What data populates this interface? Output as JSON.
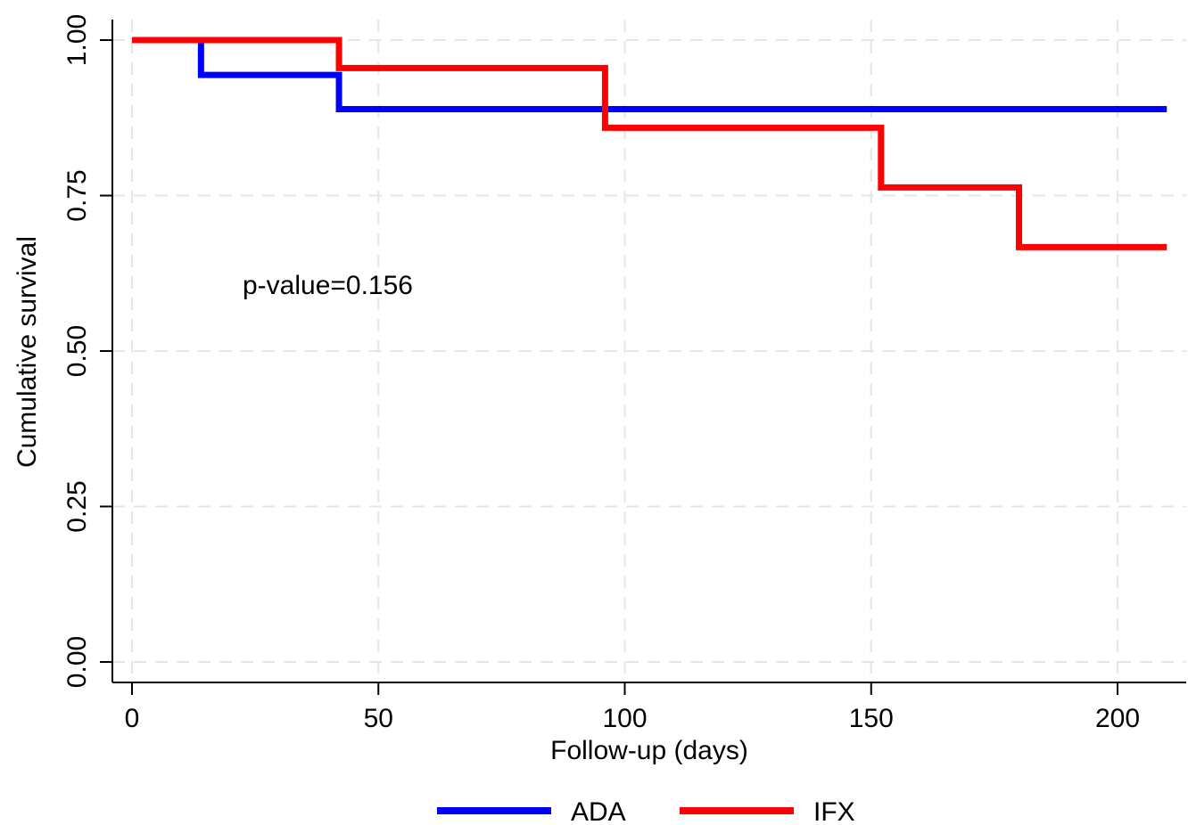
{
  "chart_data": {
    "type": "line",
    "step": true,
    "xlabel": "Follow-up (days)",
    "ylabel": "Cumulative survival",
    "xlim": [
      0,
      210
    ],
    "ylim": [
      0,
      1
    ],
    "xticks": [
      0,
      50,
      100,
      150,
      200
    ],
    "xtick_labels": [
      "0",
      "50",
      "100",
      "150",
      "200"
    ],
    "yticks": [
      0,
      0.25,
      0.5,
      0.75,
      1
    ],
    "ytick_labels": [
      "0.00",
      "0.25",
      "0.50",
      "0.75",
      "1.00"
    ],
    "grid": true,
    "legend_position": "bottom",
    "annotation": "p-value=0.156",
    "series": [
      {
        "name": "ADA",
        "color": "#0000ff",
        "x": [
          0,
          14,
          42,
          210
        ],
        "y": [
          1.0,
          0.944,
          0.889,
          0.889
        ]
      },
      {
        "name": "IFX",
        "color": "#ff0000",
        "x": [
          0,
          42,
          96,
          152,
          180,
          210
        ],
        "y": [
          1.0,
          0.955,
          0.859,
          0.763,
          0.667,
          0.667
        ]
      }
    ]
  }
}
